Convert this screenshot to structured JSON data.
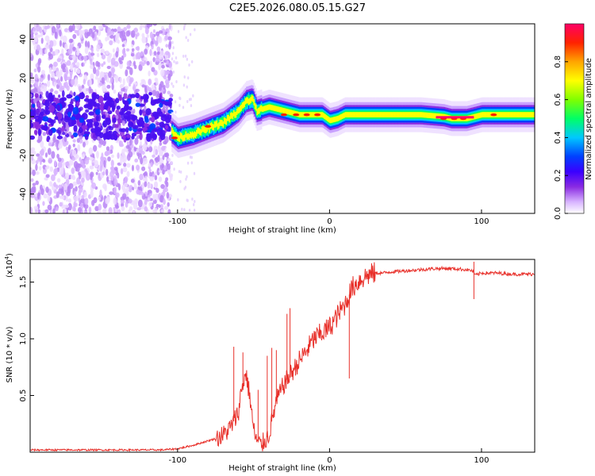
{
  "title": "C2E5.2026.080.05.15.G27",
  "chart_data": [
    {
      "type": "heatmap",
      "title": "",
      "xlabel": "Height of straight line (km)",
      "ylabel": "Frequency (Hz)",
      "xlim": [
        -197,
        135
      ],
      "ylim": [
        -50,
        48
      ],
      "xticks": [
        -100,
        0,
        100
      ],
      "xtick_labels": [
        "-100",
        "0",
        "100"
      ],
      "yticks": [
        -40,
        -20,
        0,
        20,
        40
      ],
      "ytick_labels": [
        "-40",
        "-20",
        "0",
        "20",
        "40"
      ],
      "ridge_frequency": {
        "x": [
          -197,
          -150,
          -104,
          -100,
          -90,
          -80,
          -70,
          -60,
          -55,
          -51,
          -48,
          -40,
          -35,
          -30,
          -25,
          -20,
          -10,
          -5,
          0,
          5,
          10,
          20,
          40,
          60,
          75,
          80,
          90,
          95,
          100,
          120,
          135
        ],
        "y": [
          0,
          0,
          -8,
          -11,
          -9,
          -6,
          -3,
          3,
          8,
          9,
          3,
          5,
          4,
          3,
          2,
          1,
          1,
          1,
          -2,
          -1,
          1,
          1,
          1,
          1,
          0,
          -1,
          -1,
          0,
          1,
          1,
          1
        ]
      },
      "colorbar": {
        "label": "Normalized spectral amplitude",
        "range": [
          0,
          1
        ],
        "ticks": [
          0.0,
          0.2,
          0.4,
          0.6,
          0.8
        ],
        "tick_labels": [
          "0.0",
          "0.2",
          "0.4",
          "0.6",
          "0.8"
        ],
        "colors": [
          "#ffffff",
          "#d8b4ff",
          "#8a2be2",
          "#3a00ff",
          "#0040ff",
          "#00c8ff",
          "#00ff66",
          "#80ff00",
          "#ffff00",
          "#ffa500",
          "#ff2200",
          "#ff0066"
        ]
      }
    },
    {
      "type": "line",
      "title": "",
      "xlabel": "Height of straight line (km)",
      "ylabel": "SNR (10 * v/v)",
      "y_multiplier": "(x10",
      "y_multiplier_exp": "4",
      "y_multiplier_close": ")",
      "xlim": [
        -197,
        135
      ],
      "ylim": [
        0,
        1.7
      ],
      "xticks": [
        -100,
        0,
        100
      ],
      "xtick_labels": [
        "-100",
        "0",
        "100"
      ],
      "yticks": [
        0.5,
        1.0,
        1.5
      ],
      "ytick_labels": [
        "0.5",
        "1.0",
        "1.5"
      ],
      "series": [
        {
          "name": "SNR",
          "color": "#e8302a",
          "x": [
            -197,
            -150,
            -110,
            -100,
            -90,
            -80,
            -75,
            -70,
            -65,
            -60,
            -58,
            -55,
            -52,
            -50,
            -48,
            -45,
            -40,
            -35,
            -30,
            -25,
            -20,
            -15,
            -10,
            -5,
            0,
            5,
            10,
            15,
            20,
            25,
            30,
            35,
            40,
            50,
            60,
            70,
            80,
            90,
            94,
            96,
            100,
            110,
            120,
            135
          ],
          "y": [
            0.02,
            0.02,
            0.02,
            0.03,
            0.06,
            0.1,
            0.12,
            0.15,
            0.22,
            0.35,
            0.55,
            0.7,
            0.45,
            0.2,
            0.1,
            0.06,
            0.15,
            0.45,
            0.6,
            0.7,
            0.8,
            0.9,
            1.0,
            1.05,
            1.1,
            1.2,
            1.3,
            1.45,
            1.52,
            1.56,
            1.58,
            1.58,
            1.59,
            1.6,
            1.61,
            1.62,
            1.62,
            1.61,
            1.6,
            1.56,
            1.58,
            1.58,
            1.57,
            1.57
          ],
          "spikes": [
            {
              "x": -63,
              "y": 0.93
            },
            {
              "x": -57,
              "y": 0.88
            },
            {
              "x": -47,
              "y": 0.55
            },
            {
              "x": -41,
              "y": 0.85
            },
            {
              "x": -38,
              "y": 0.92
            },
            {
              "x": -35,
              "y": 0.9
            },
            {
              "x": -28,
              "y": 1.22
            },
            {
              "x": -26,
              "y": 1.27
            },
            {
              "x": 13,
              "y": 0.65
            },
            {
              "x": 95,
              "y": 1.35
            },
            {
              "x": 95,
              "y": 1.68
            }
          ]
        }
      ]
    }
  ]
}
